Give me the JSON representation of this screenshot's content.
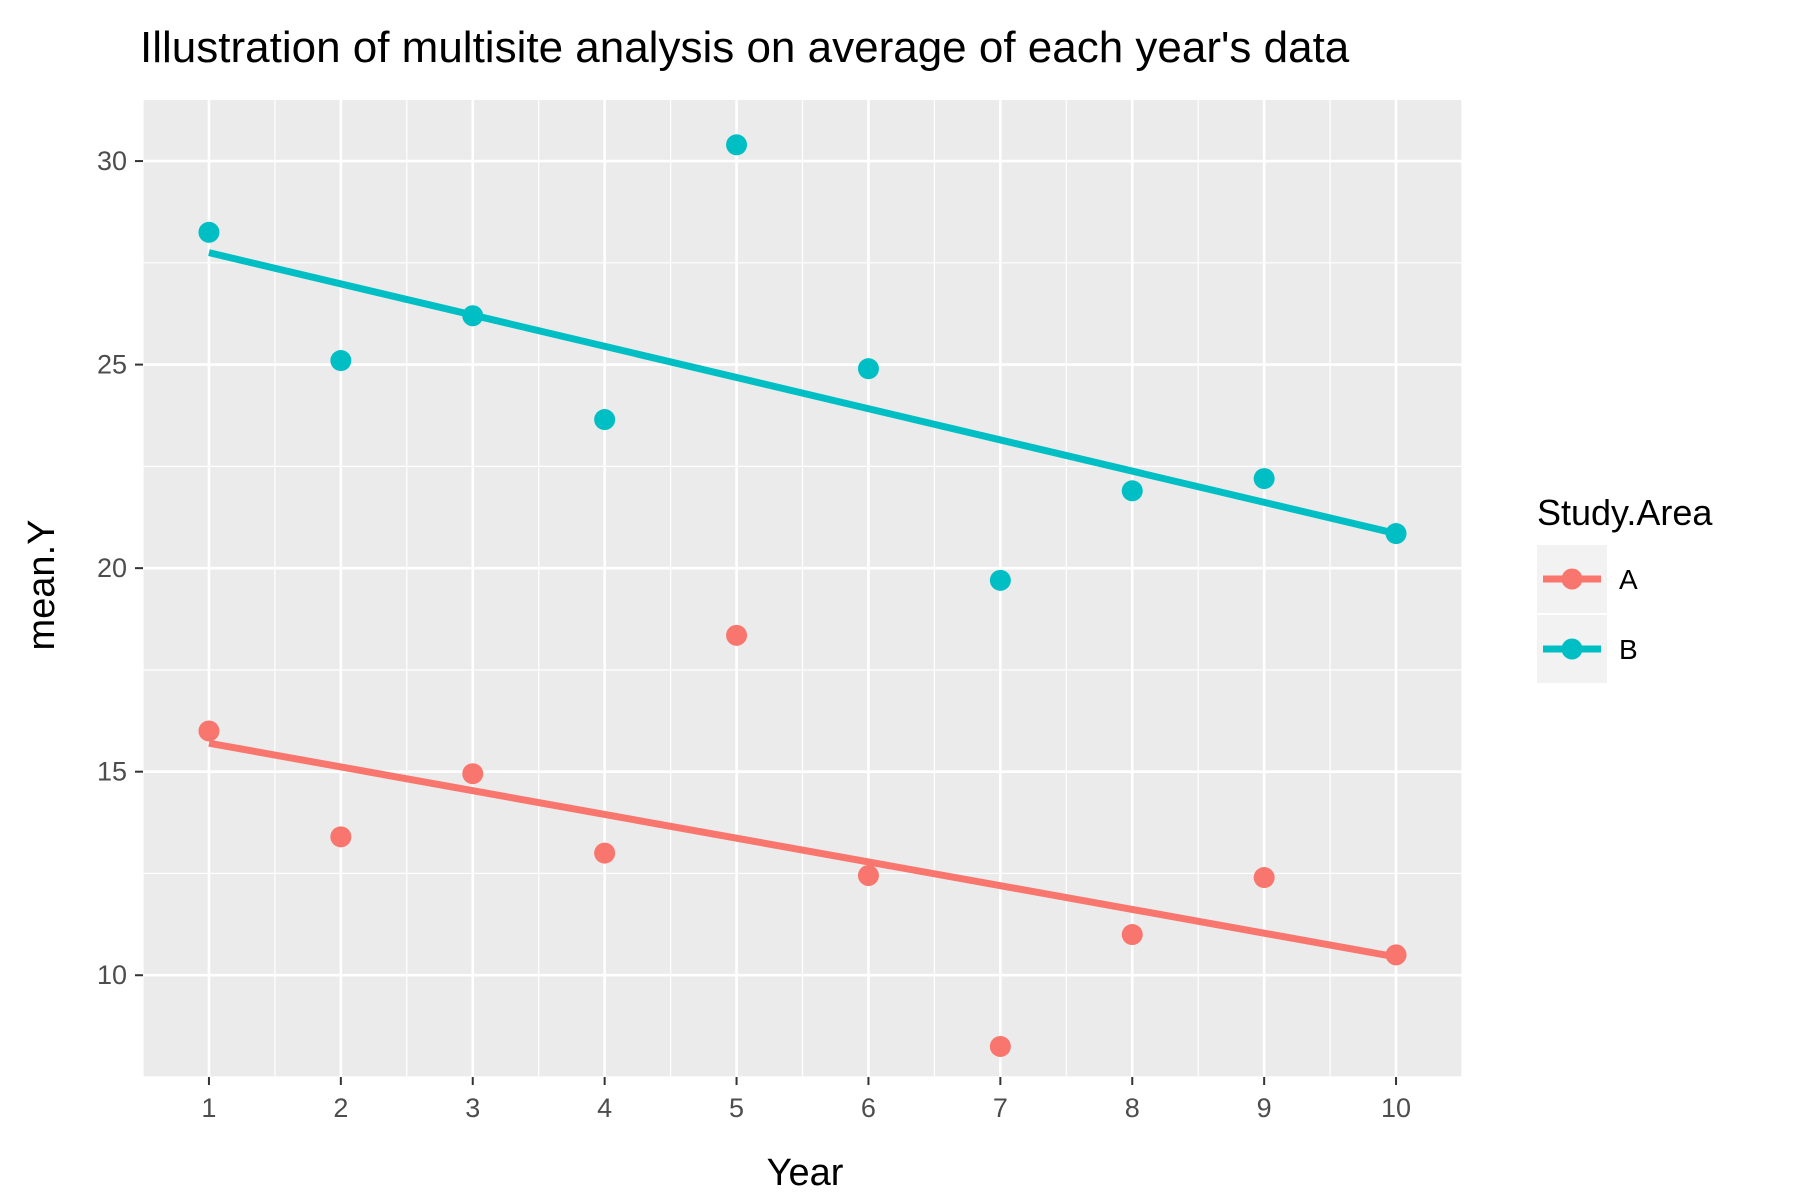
{
  "chart_data": {
    "type": "scatter",
    "title": "Illustration of multisite analysis on average of each year's data",
    "xlabel": "Year",
    "ylabel": "mean.Y",
    "xlim": [
      0.5,
      10.5
    ],
    "ylim": [
      7.5,
      31.5
    ],
    "x_ticks": [
      1,
      2,
      3,
      4,
      5,
      6,
      7,
      8,
      9,
      10
    ],
    "y_ticks": [
      10,
      15,
      20,
      25,
      30
    ],
    "grid": true,
    "legend": {
      "title": "Study.Area",
      "position": "right"
    },
    "series": [
      {
        "name": "A",
        "color": "#F8766D",
        "points": [
          {
            "x": 1,
            "y": 16.0
          },
          {
            "x": 2,
            "y": 13.4
          },
          {
            "x": 3,
            "y": 14.95
          },
          {
            "x": 4,
            "y": 13.0
          },
          {
            "x": 5,
            "y": 18.35
          },
          {
            "x": 6,
            "y": 12.45
          },
          {
            "x": 7,
            "y": 8.25
          },
          {
            "x": 8,
            "y": 11.0
          },
          {
            "x": 9,
            "y": 12.4
          },
          {
            "x": 10,
            "y": 10.5
          }
        ],
        "fit_line": [
          {
            "x": 1,
            "y": 15.7
          },
          {
            "x": 10,
            "y": 10.45
          }
        ]
      },
      {
        "name": "B",
        "color": "#00BFC4",
        "points": [
          {
            "x": 1,
            "y": 28.25
          },
          {
            "x": 2,
            "y": 25.1
          },
          {
            "x": 3,
            "y": 26.2
          },
          {
            "x": 4,
            "y": 23.65
          },
          {
            "x": 5,
            "y": 30.4
          },
          {
            "x": 6,
            "y": 24.9
          },
          {
            "x": 7,
            "y": 19.7
          },
          {
            "x": 8,
            "y": 21.9
          },
          {
            "x": 9,
            "y": 22.2
          },
          {
            "x": 10,
            "y": 20.85
          }
        ],
        "fit_line": [
          {
            "x": 1,
            "y": 27.75
          },
          {
            "x": 10,
            "y": 20.85
          }
        ]
      }
    ]
  }
}
